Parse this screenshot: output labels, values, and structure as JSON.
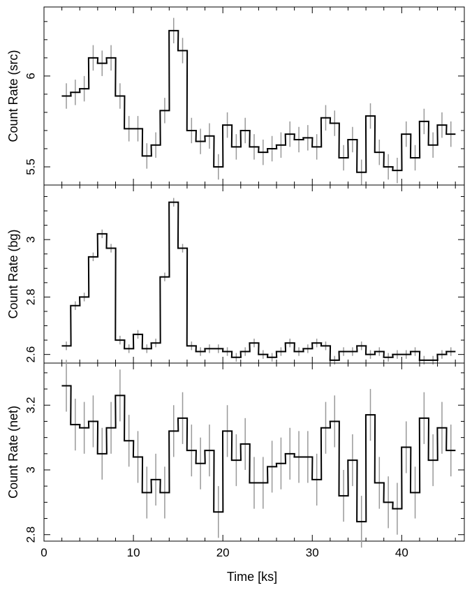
{
  "chart_data": [
    {
      "type": "line",
      "ylabel": "Count Rate (src)",
      "ylim": [
        5.4,
        6.38
      ],
      "xlim": [
        0,
        47
      ],
      "yticks_major": [
        5.5,
        6
      ],
      "yticks_minor": [
        5.6,
        5.7,
        5.8,
        5.9,
        6.1,
        6.2,
        6.3
      ],
      "bin_width": 1.03,
      "x": [
        2.5,
        3.5,
        4.5,
        5.5,
        6.5,
        7.5,
        8.5,
        9.5,
        10.5,
        11.5,
        12.5,
        13.5,
        14.5,
        15.5,
        16.5,
        17.5,
        18.5,
        19.5,
        20.5,
        21.5,
        22.5,
        23.5,
        24.5,
        25.5,
        26.5,
        27.5,
        28.5,
        29.5,
        30.5,
        31.5,
        32.5,
        33.5,
        34.5,
        35.5,
        36.5,
        37.5,
        38.5,
        39.5,
        40.5,
        41.5,
        42.5,
        43.5,
        44.5,
        45.5
      ],
      "values": [
        5.89,
        5.91,
        5.93,
        6.1,
        6.07,
        6.1,
        5.89,
        5.71,
        5.71,
        5.56,
        5.62,
        5.81,
        6.25,
        6.14,
        5.7,
        5.64,
        5.67,
        5.5,
        5.73,
        5.61,
        5.7,
        5.61,
        5.58,
        5.6,
        5.62,
        5.68,
        5.65,
        5.66,
        5.61,
        5.77,
        5.74,
        5.55,
        5.65,
        5.47,
        5.78,
        5.58,
        5.5,
        5.48,
        5.68,
        5.55,
        5.75,
        5.62,
        5.73,
        5.68
      ],
      "errors": [
        0.07,
        0.07,
        0.07,
        0.07,
        0.07,
        0.07,
        0.07,
        0.07,
        0.07,
        0.07,
        0.07,
        0.07,
        0.07,
        0.07,
        0.07,
        0.07,
        0.07,
        0.07,
        0.07,
        0.07,
        0.07,
        0.07,
        0.07,
        0.07,
        0.07,
        0.07,
        0.07,
        0.07,
        0.07,
        0.07,
        0.07,
        0.07,
        0.07,
        0.07,
        0.07,
        0.07,
        0.07,
        0.07,
        0.07,
        0.07,
        0.07,
        0.07,
        0.07,
        0.07
      ]
    },
    {
      "type": "line",
      "ylabel": "Count Rate (bg)",
      "ylim": [
        2.57,
        3.19
      ],
      "xlim": [
        0,
        47
      ],
      "yticks_major": [
        2.6,
        2.8,
        3
      ],
      "yticks_minor": [
        2.65,
        2.7,
        2.75,
        2.85,
        2.9,
        2.95,
        3.05,
        3.1,
        3.15
      ],
      "bin_width": 1.03,
      "x": [
        2.5,
        3.5,
        4.5,
        5.5,
        6.5,
        7.5,
        8.5,
        9.5,
        10.5,
        11.5,
        12.5,
        13.5,
        14.5,
        15.5,
        16.5,
        17.5,
        18.5,
        19.5,
        20.5,
        21.5,
        22.5,
        23.5,
        24.5,
        25.5,
        26.5,
        27.5,
        28.5,
        29.5,
        30.5,
        31.5,
        32.5,
        33.5,
        34.5,
        35.5,
        36.5,
        37.5,
        38.5,
        39.5,
        40.5,
        41.5,
        42.5,
        43.5,
        44.5,
        45.5
      ],
      "values": [
        2.63,
        2.77,
        2.8,
        2.94,
        3.02,
        2.97,
        2.65,
        2.62,
        2.67,
        2.62,
        2.64,
        2.87,
        3.13,
        2.97,
        2.63,
        2.61,
        2.62,
        2.62,
        2.61,
        2.59,
        2.61,
        2.64,
        2.6,
        2.59,
        2.61,
        2.64,
        2.61,
        2.62,
        2.64,
        2.63,
        2.58,
        2.61,
        2.61,
        2.63,
        2.6,
        2.61,
        2.59,
        2.6,
        2.6,
        2.61,
        2.58,
        2.58,
        2.6,
        2.61
      ],
      "errors": [
        0.015,
        0.015,
        0.015,
        0.015,
        0.015,
        0.015,
        0.015,
        0.015,
        0.015,
        0.015,
        0.015,
        0.015,
        0.015,
        0.015,
        0.015,
        0.015,
        0.015,
        0.015,
        0.015,
        0.015,
        0.015,
        0.015,
        0.015,
        0.015,
        0.015,
        0.015,
        0.015,
        0.015,
        0.015,
        0.015,
        0.015,
        0.015,
        0.015,
        0.015,
        0.015,
        0.015,
        0.015,
        0.015,
        0.015,
        0.015,
        0.015,
        0.015,
        0.015,
        0.015
      ]
    },
    {
      "type": "line",
      "ylabel": "Count Rate (net)",
      "xlabel": "Time [ks]",
      "ylim": [
        2.78,
        3.33
      ],
      "xlim": [
        0,
        47
      ],
      "xticks_major": [
        0,
        10,
        20,
        30,
        40
      ],
      "xticks_minor": [
        2,
        4,
        6,
        8,
        12,
        14,
        16,
        18,
        22,
        24,
        26,
        28,
        32,
        34,
        36,
        38,
        42,
        44,
        46
      ],
      "yticks_major": [
        2.8,
        3,
        3.2
      ],
      "yticks_minor": [
        2.85,
        2.9,
        2.95,
        3.05,
        3.1,
        3.15,
        3.25,
        3.3
      ],
      "bin_width": 1.03,
      "x": [
        2.5,
        3.5,
        4.5,
        5.5,
        6.5,
        7.5,
        8.5,
        9.5,
        10.5,
        11.5,
        12.5,
        13.5,
        14.5,
        15.5,
        16.5,
        17.5,
        18.5,
        19.5,
        20.5,
        21.5,
        22.5,
        23.5,
        24.5,
        25.5,
        26.5,
        27.5,
        28.5,
        29.5,
        30.5,
        31.5,
        32.5,
        33.5,
        34.5,
        35.5,
        36.5,
        37.5,
        38.5,
        39.5,
        40.5,
        41.5,
        42.5,
        43.5,
        44.5,
        45.5
      ],
      "values": [
        3.26,
        3.14,
        3.13,
        3.15,
        3.05,
        3.13,
        3.23,
        3.09,
        3.04,
        2.93,
        2.97,
        2.93,
        3.12,
        3.16,
        3.06,
        3.02,
        3.06,
        2.87,
        3.12,
        3.03,
        3.08,
        2.96,
        2.96,
        3.01,
        3.02,
        3.05,
        3.04,
        3.04,
        2.97,
        3.13,
        3.15,
        2.92,
        3.03,
        2.84,
        3.17,
        2.96,
        2.9,
        2.88,
        3.07,
        2.93,
        3.16,
        3.03,
        3.13,
        3.06
      ],
      "errors": [
        0.08,
        0.08,
        0.08,
        0.08,
        0.08,
        0.08,
        0.08,
        0.08,
        0.08,
        0.08,
        0.08,
        0.08,
        0.08,
        0.08,
        0.08,
        0.08,
        0.08,
        0.08,
        0.08,
        0.08,
        0.08,
        0.08,
        0.08,
        0.08,
        0.08,
        0.08,
        0.08,
        0.08,
        0.08,
        0.08,
        0.08,
        0.08,
        0.08,
        0.08,
        0.08,
        0.08,
        0.08,
        0.08,
        0.08,
        0.08,
        0.08,
        0.08,
        0.08,
        0.08
      ]
    }
  ]
}
